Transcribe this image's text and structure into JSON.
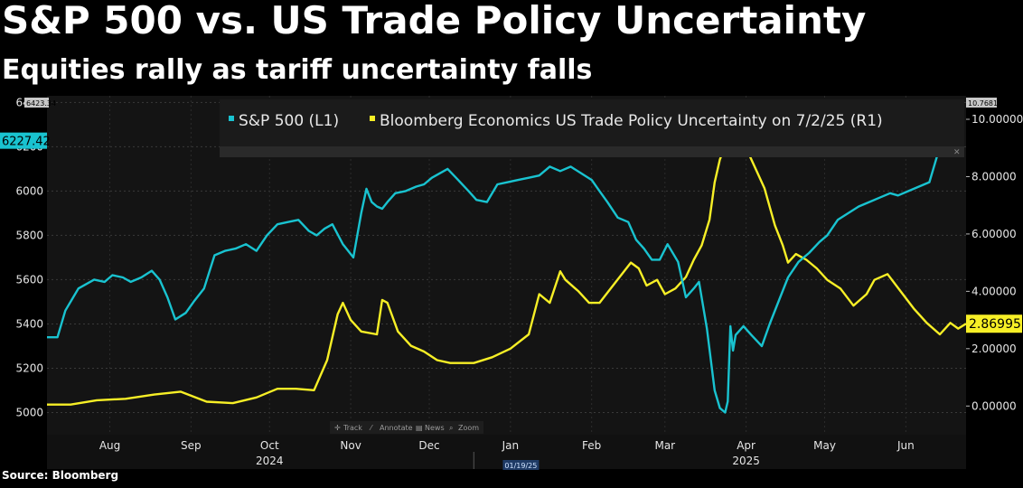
{
  "header": {
    "title": "S&P 500 vs. US Trade Policy Uncertainty",
    "subtitle": "Equities rally as tariff uncertainty falls"
  },
  "footer": {
    "source": "Source: Bloomberg"
  },
  "toolbar": {
    "track": "Track",
    "annotate": "Annotate",
    "news": "News",
    "zoom": "Zoom"
  },
  "colors": {
    "spx": "#19c3d0",
    "tpu": "#f7ef26",
    "background": "#000000",
    "plot_background": "#141414"
  },
  "chart_data": {
    "type": "line",
    "legend_position": "top",
    "grid": true,
    "x_axis": {
      "range": [
        "2024-07-22",
        "2025-07-08"
      ],
      "months": [
        {
          "label": "Aug",
          "date": "2024-08-15"
        },
        {
          "label": "Sep",
          "date": "2024-09-15"
        },
        {
          "label": "Oct",
          "date": "2024-10-15"
        },
        {
          "label": "Nov",
          "date": "2024-11-15"
        },
        {
          "label": "Dec",
          "date": "2024-12-15"
        },
        {
          "label": "Jan",
          "date": "2025-01-15"
        },
        {
          "label": "Feb",
          "date": "2025-02-15"
        },
        {
          "label": "Mar",
          "date": "2025-03-15"
        },
        {
          "label": "Apr",
          "date": "2025-04-15"
        },
        {
          "label": "May",
          "date": "2025-05-15"
        },
        {
          "label": "Jun",
          "date": "2025-06-15"
        }
      ],
      "years": [
        {
          "label": "2024",
          "date": "2024-10-15"
        },
        {
          "label": "2025",
          "date": "2025-04-15"
        }
      ],
      "year_divider": "2025-01-01",
      "crosshair_label": "01/19/25",
      "crosshair_date": "2025-01-19"
    },
    "y_left": {
      "range": [
        4900,
        6430
      ],
      "ticks": [
        5000,
        5200,
        5400,
        5600,
        5800,
        6000,
        6200,
        6400
      ],
      "tick_labels": [
        "5000",
        "5200",
        "5400",
        "5600",
        "5800",
        "6000",
        "6200",
        "6400"
      ],
      "top_label": "6423.34",
      "last_label": "6227.42",
      "last_value": 6227.42
    },
    "y_right": {
      "range": [
        -1.0,
        10.82
      ],
      "ticks": [
        0,
        2,
        4,
        6,
        8,
        10
      ],
      "tick_labels": [
        "0.00000",
        "2.00000",
        "4.00000",
        "6.00000",
        "8.00000",
        "10.00000"
      ],
      "top_label": "10.76812",
      "last_label": "2.86995",
      "last_value": 2.86995
    },
    "series": [
      {
        "name": "S&P 500 (L1)",
        "axis": "left",
        "color": "#19c3d0",
        "points": [
          [
            "2024-07-22",
            5340
          ],
          [
            "2024-07-26",
            5340
          ],
          [
            "2024-07-29",
            5460
          ],
          [
            "2024-08-01",
            5520
          ],
          [
            "2024-08-03",
            5560
          ],
          [
            "2024-08-06",
            5580
          ],
          [
            "2024-08-09",
            5600
          ],
          [
            "2024-08-13",
            5590
          ],
          [
            "2024-08-16",
            5620
          ],
          [
            "2024-08-20",
            5610
          ],
          [
            "2024-08-23",
            5590
          ],
          [
            "2024-08-27",
            5610
          ],
          [
            "2024-08-31",
            5640
          ],
          [
            "2024-09-03",
            5600
          ],
          [
            "2024-09-06",
            5520
          ],
          [
            "2024-09-09",
            5420
          ],
          [
            "2024-09-13",
            5450
          ],
          [
            "2024-09-16",
            5500
          ],
          [
            "2024-09-20",
            5560
          ],
          [
            "2024-09-24",
            5710
          ],
          [
            "2024-09-28",
            5730
          ],
          [
            "2024-10-02",
            5740
          ],
          [
            "2024-10-06",
            5760
          ],
          [
            "2024-10-10",
            5730
          ],
          [
            "2024-10-14",
            5800
          ],
          [
            "2024-10-18",
            5850
          ],
          [
            "2024-10-22",
            5860
          ],
          [
            "2024-10-26",
            5870
          ],
          [
            "2024-10-30",
            5820
          ],
          [
            "2024-11-02",
            5800
          ],
          [
            "2024-11-05",
            5830
          ],
          [
            "2024-11-08",
            5850
          ],
          [
            "2024-11-12",
            5760
          ],
          [
            "2024-11-16",
            5700
          ],
          [
            "2024-11-19",
            5900
          ],
          [
            "2024-11-21",
            6010
          ],
          [
            "2024-11-23",
            5950
          ],
          [
            "2024-11-25",
            5930
          ],
          [
            "2024-11-27",
            5920
          ],
          [
            "2024-11-29",
            5950
          ],
          [
            "2024-12-02",
            5990
          ],
          [
            "2024-12-06",
            6000
          ],
          [
            "2024-12-10",
            6020
          ],
          [
            "2024-12-13",
            6030
          ],
          [
            "2024-12-16",
            6060
          ],
          [
            "2024-12-19",
            6080
          ],
          [
            "2024-12-22",
            6100
          ],
          [
            "2024-12-26",
            6050
          ],
          [
            "2024-12-30",
            6000
          ],
          [
            "2025-01-02",
            5960
          ],
          [
            "2025-01-06",
            5950
          ],
          [
            "2025-01-10",
            6030
          ],
          [
            "2025-01-14",
            6040
          ],
          [
            "2025-01-18",
            6050
          ],
          [
            "2025-01-22",
            6060
          ],
          [
            "2025-01-26",
            6070
          ],
          [
            "2025-01-30",
            6110
          ],
          [
            "2025-02-03",
            6090
          ],
          [
            "2025-02-07",
            6110
          ],
          [
            "2025-02-11",
            6080
          ],
          [
            "2025-02-15",
            6050
          ],
          [
            "2025-02-18",
            6000
          ],
          [
            "2025-02-21",
            5950
          ],
          [
            "2025-02-25",
            5880
          ],
          [
            "2025-03-01",
            5860
          ],
          [
            "2025-03-04",
            5780
          ],
          [
            "2025-03-07",
            5740
          ],
          [
            "2025-03-10",
            5690
          ],
          [
            "2025-03-13",
            5690
          ],
          [
            "2025-03-16",
            5760
          ],
          [
            "2025-03-20",
            5680
          ],
          [
            "2025-03-23",
            5520
          ],
          [
            "2025-03-26",
            5560
          ],
          [
            "2025-03-28",
            5590
          ],
          [
            "2025-03-31",
            5380
          ],
          [
            "2025-04-03",
            5100
          ],
          [
            "2025-04-05",
            5020
          ],
          [
            "2025-04-07",
            5000
          ],
          [
            "2025-04-08",
            5050
          ],
          [
            "2025-04-09",
            5390
          ],
          [
            "2025-04-10",
            5280
          ],
          [
            "2025-04-11",
            5350
          ],
          [
            "2025-04-14",
            5390
          ],
          [
            "2025-04-17",
            5350
          ],
          [
            "2025-04-21",
            5300
          ],
          [
            "2025-04-24",
            5400
          ],
          [
            "2025-04-28",
            5520
          ],
          [
            "2025-05-01",
            5610
          ],
          [
            "2025-05-05",
            5680
          ],
          [
            "2025-05-09",
            5720
          ],
          [
            "2025-05-13",
            5770
          ],
          [
            "2025-05-16",
            5800
          ],
          [
            "2025-05-20",
            5870
          ],
          [
            "2025-05-24",
            5900
          ],
          [
            "2025-05-28",
            5930
          ],
          [
            "2025-06-01",
            5950
          ],
          [
            "2025-06-05",
            5970
          ],
          [
            "2025-06-09",
            5990
          ],
          [
            "2025-06-12",
            5980
          ],
          [
            "2025-06-16",
            6000
          ],
          [
            "2025-06-20",
            6020
          ],
          [
            "2025-06-24",
            6040
          ],
          [
            "2025-06-27",
            6160
          ],
          [
            "2025-07-01",
            6200
          ],
          [
            "2025-07-04",
            6227.42
          ]
        ]
      },
      {
        "name": "Bloomberg Economics US Trade Policy Uncertainty on 7/2/25 (R1)",
        "axis": "right",
        "color": "#f7ef26",
        "points": [
          [
            "2024-07-22",
            0.05
          ],
          [
            "2024-07-31",
            0.05
          ],
          [
            "2024-08-10",
            0.2
          ],
          [
            "2024-08-21",
            0.25
          ],
          [
            "2024-09-01",
            0.4
          ],
          [
            "2024-09-11",
            0.5
          ],
          [
            "2024-09-21",
            0.15
          ],
          [
            "2024-10-01",
            0.1
          ],
          [
            "2024-10-10",
            0.3
          ],
          [
            "2024-10-18",
            0.6
          ],
          [
            "2024-10-25",
            0.6
          ],
          [
            "2024-11-01",
            0.55
          ],
          [
            "2024-11-06",
            1.6
          ],
          [
            "2024-11-10",
            3.2
          ],
          [
            "2024-11-12",
            3.6
          ],
          [
            "2024-11-15",
            3.0
          ],
          [
            "2024-11-19",
            2.6
          ],
          [
            "2024-11-25",
            2.5
          ],
          [
            "2024-11-27",
            3.7
          ],
          [
            "2024-11-29",
            3.6
          ],
          [
            "2024-12-03",
            2.6
          ],
          [
            "2024-12-08",
            2.1
          ],
          [
            "2024-12-13",
            1.9
          ],
          [
            "2024-12-18",
            1.6
          ],
          [
            "2024-12-23",
            1.5
          ],
          [
            "2025-01-01",
            1.5
          ],
          [
            "2025-01-08",
            1.7
          ],
          [
            "2025-01-15",
            2.0
          ],
          [
            "2025-01-22",
            2.5
          ],
          [
            "2025-01-26",
            3.9
          ],
          [
            "2025-01-30",
            3.6
          ],
          [
            "2025-02-03",
            4.7
          ],
          [
            "2025-02-05",
            4.4
          ],
          [
            "2025-02-10",
            4.0
          ],
          [
            "2025-02-14",
            3.6
          ],
          [
            "2025-02-18",
            3.6
          ],
          [
            "2025-02-24",
            4.3
          ],
          [
            "2025-03-02",
            5.0
          ],
          [
            "2025-03-05",
            4.8
          ],
          [
            "2025-03-08",
            4.2
          ],
          [
            "2025-03-12",
            4.4
          ],
          [
            "2025-03-15",
            3.9
          ],
          [
            "2025-03-19",
            4.1
          ],
          [
            "2025-03-23",
            4.5
          ],
          [
            "2025-03-26",
            5.1
          ],
          [
            "2025-03-29",
            5.6
          ],
          [
            "2025-04-01",
            6.5
          ],
          [
            "2025-04-03",
            7.8
          ],
          [
            "2025-04-05",
            8.6
          ],
          [
            "2025-04-08",
            9.3
          ],
          [
            "2025-04-10",
            9.0
          ],
          [
            "2025-04-13",
            8.9
          ],
          [
            "2025-04-16",
            8.8
          ],
          [
            "2025-04-19",
            8.2
          ],
          [
            "2025-04-22",
            7.6
          ],
          [
            "2025-04-26",
            6.3
          ],
          [
            "2025-04-29",
            5.6
          ],
          [
            "2025-05-01",
            5.0
          ],
          [
            "2025-05-04",
            5.3
          ],
          [
            "2025-05-08",
            5.1
          ],
          [
            "2025-05-12",
            4.8
          ],
          [
            "2025-05-16",
            4.4
          ],
          [
            "2025-05-21",
            4.1
          ],
          [
            "2025-05-26",
            3.5
          ],
          [
            "2025-05-31",
            3.9
          ],
          [
            "2025-06-03",
            4.4
          ],
          [
            "2025-06-08",
            4.6
          ],
          [
            "2025-06-13",
            4.0
          ],
          [
            "2025-06-18",
            3.4
          ],
          [
            "2025-06-23",
            2.9
          ],
          [
            "2025-06-28",
            2.5
          ],
          [
            "2025-07-02",
            2.9
          ],
          [
            "2025-07-05",
            2.7
          ],
          [
            "2025-07-08",
            2.86995
          ]
        ]
      }
    ]
  }
}
